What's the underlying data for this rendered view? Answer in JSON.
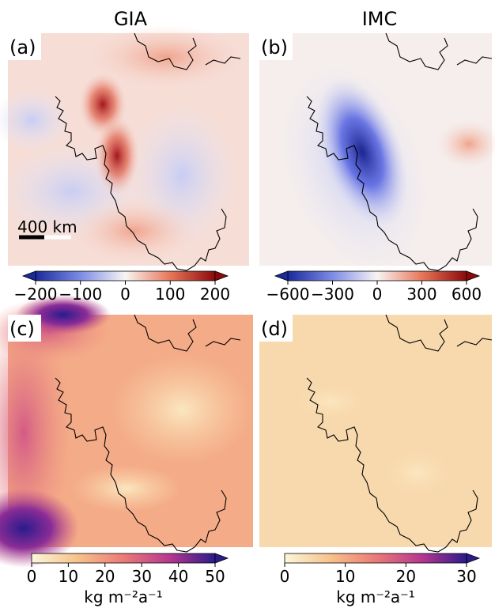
{
  "columns": [
    "GIA",
    "IMC"
  ],
  "panels": [
    {
      "label": "(a)"
    },
    {
      "label": "(b)"
    },
    {
      "label": "(c)"
    },
    {
      "label": "(d)"
    }
  ],
  "scale_bar": "400 km",
  "colorbars": [
    {
      "colormap": "RdBu_r",
      "extend": "both",
      "lim": [
        -200,
        200
      ],
      "ticks": [
        {
          "value": -200,
          "label": "−200"
        },
        {
          "value": -100,
          "label": "−100"
        },
        0,
        100,
        200
      ]
    },
    {
      "colormap": "RdBu_r",
      "extend": "both",
      "lim": [
        -600,
        600
      ],
      "ticks": [
        {
          "value": -600,
          "label": "−600"
        },
        {
          "value": -300,
          "label": "−300"
        },
        0,
        300,
        600
      ]
    },
    {
      "colormap": "magma_r",
      "extend": "max",
      "lim": [
        0,
        50
      ],
      "ticks": [
        0,
        10,
        20,
        30,
        40,
        50
      ],
      "label": "kg m⁻²a⁻¹"
    },
    {
      "colormap": "magma_r",
      "extend": "max",
      "lim": [
        0,
        30
      ],
      "ticks": [
        0,
        10,
        20,
        30
      ],
      "label": "kg m⁻²a⁻¹"
    }
  ]
}
